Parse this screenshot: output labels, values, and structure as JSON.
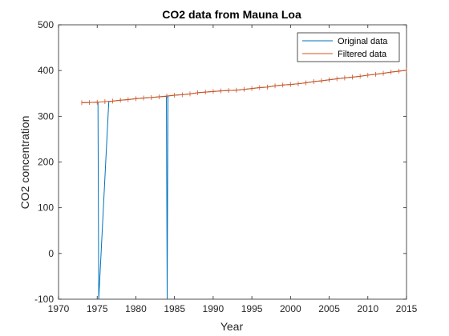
{
  "chart_data": {
    "type": "line",
    "title": "CO2 data from Mauna Loa",
    "xlabel": "Year",
    "ylabel": "CO2 concentration",
    "xlim": [
      1970,
      2015
    ],
    "ylim": [
      -100,
      500
    ],
    "xticks": [
      1970,
      1975,
      1980,
      1985,
      1990,
      1995,
      2000,
      2005,
      2010,
      2015
    ],
    "yticks": [
      -100,
      0,
      100,
      200,
      300,
      400,
      500
    ],
    "grid": false,
    "legend_position": "top-right",
    "series": [
      {
        "name": "Original data",
        "color": "#0072BD",
        "x": [
          1973,
          1974,
          1975,
          1975.1,
          1975.2,
          1976.5,
          1977,
          1978,
          1979,
          1980,
          1981,
          1982,
          1983,
          1983.95,
          1984.05,
          1984.15,
          1985,
          1986,
          1987,
          1988,
          1989,
          1990,
          1991,
          1992,
          1993,
          1994,
          1995,
          1996,
          1997,
          1998,
          1999,
          2000,
          2001,
          2002,
          2003,
          2004,
          2005,
          2006,
          2007,
          2008,
          2009,
          2010,
          2011,
          2012,
          2013,
          2014,
          2015
        ],
        "y": [
          329.7,
          330.2,
          330.8,
          330.8,
          -100,
          332,
          333.1,
          335.1,
          336.5,
          338.5,
          339.9,
          341.0,
          342.6,
          343.5,
          -100,
          344.3,
          346.0,
          347.1,
          348.9,
          351.5,
          352.9,
          354.2,
          355.4,
          356.3,
          357.0,
          358.8,
          360.8,
          362.6,
          363.7,
          366.7,
          368.4,
          369.5,
          371.1,
          373.2,
          375.8,
          377.5,
          379.8,
          381.9,
          383.8,
          385.6,
          387.4,
          389.9,
          391.7,
          393.9,
          396.5,
          398.6,
          400.8
        ]
      },
      {
        "name": "Filtered data",
        "color": "#D95319",
        "x": [
          1973,
          1974,
          1975,
          1976,
          1977,
          1978,
          1979,
          1980,
          1981,
          1982,
          1983,
          1984,
          1985,
          1986,
          1987,
          1988,
          1989,
          1990,
          1991,
          1992,
          1993,
          1994,
          1995,
          1996,
          1997,
          1998,
          1999,
          2000,
          2001,
          2002,
          2003,
          2004,
          2005,
          2006,
          2007,
          2008,
          2009,
          2010,
          2011,
          2012,
          2013,
          2014,
          2015
        ],
        "y": [
          329.7,
          330.2,
          330.8,
          332.0,
          333.1,
          335.1,
          336.5,
          338.5,
          339.9,
          341.0,
          342.6,
          344.3,
          346.0,
          347.1,
          348.9,
          351.5,
          352.9,
          354.2,
          355.4,
          356.3,
          357.0,
          358.8,
          360.8,
          362.6,
          363.7,
          366.7,
          368.4,
          369.5,
          371.1,
          373.2,
          375.8,
          377.5,
          379.8,
          381.9,
          383.8,
          385.6,
          387.4,
          389.9,
          391.7,
          393.9,
          396.5,
          398.6,
          400.8
        ]
      }
    ]
  }
}
